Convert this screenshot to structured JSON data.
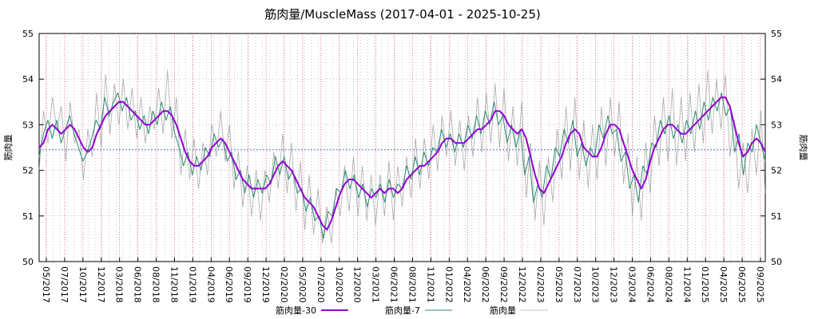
{
  "chart_data": {
    "type": "line",
    "title": "筋肉量/MuscleMass (2017-04-01 - 2025-10-25)",
    "ylabel_left": "筋肉量",
    "ylabel_right": "筋肉量",
    "ylim": [
      50,
      55
    ],
    "yticks": [
      50,
      51,
      52,
      53,
      54,
      55
    ],
    "xlim": [
      "2017-04-01",
      "2025-10-25"
    ],
    "xtick_labels": [
      "05/2017",
      "07/2017",
      "10/2017",
      "12/2017",
      "03/2018",
      "06/2018",
      "08/2018",
      "11/2018",
      "01/2019",
      "04/2019",
      "06/2019",
      "09/2019",
      "12/2019",
      "02/2020",
      "05/2020",
      "07/2020",
      "10/2020",
      "12/2020",
      "03/2021",
      "06/2021",
      "08/2021",
      "11/2021",
      "01/2022",
      "04/2022",
      "06/2022",
      "09/2022",
      "12/2022",
      "02/2023",
      "05/2023",
      "07/2023",
      "10/2023",
      "12/2023",
      "03/2024",
      "06/2024",
      "08/2024",
      "11/2024",
      "01/2025",
      "04/2025",
      "06/2025",
      "09/2025"
    ],
    "reference_line": 52.45,
    "grid": true,
    "legend": {
      "position": "bottom"
    },
    "series": [
      {
        "name": "筋肉量-30",
        "color": "#9400d3",
        "values": [
          52.5,
          52.6,
          52.9,
          53.0,
          52.9,
          52.8,
          52.9,
          53.0,
          52.9,
          52.7,
          52.5,
          52.4,
          52.5,
          52.8,
          53.0,
          53.2,
          53.3,
          53.4,
          53.5,
          53.5,
          53.4,
          53.3,
          53.2,
          53.1,
          53.0,
          53.0,
          53.1,
          53.2,
          53.3,
          53.3,
          53.2,
          53.0,
          52.7,
          52.4,
          52.2,
          52.1,
          52.1,
          52.2,
          52.3,
          52.5,
          52.6,
          52.7,
          52.6,
          52.4,
          52.2,
          52.0,
          51.8,
          51.7,
          51.6,
          51.6,
          51.6,
          51.6,
          51.7,
          51.9,
          52.1,
          52.2,
          52.1,
          52.0,
          51.8,
          51.6,
          51.4,
          51.3,
          51.2,
          51.0,
          50.8,
          50.7,
          50.9,
          51.2,
          51.5,
          51.7,
          51.8,
          51.8,
          51.7,
          51.6,
          51.5,
          51.4,
          51.5,
          51.6,
          51.5,
          51.6,
          51.6,
          51.5,
          51.6,
          51.8,
          51.9,
          52.0,
          52.1,
          52.1,
          52.2,
          52.3,
          52.4,
          52.6,
          52.7,
          52.7,
          52.6,
          52.6,
          52.6,
          52.7,
          52.8,
          52.9,
          52.9,
          53.0,
          53.1,
          53.3,
          53.3,
          53.2,
          53.0,
          52.9,
          52.8,
          52.9,
          52.7,
          52.3,
          51.9,
          51.6,
          51.5,
          51.7,
          51.9,
          52.1,
          52.3,
          52.6,
          52.8,
          52.9,
          52.8,
          52.5,
          52.4,
          52.3,
          52.3,
          52.5,
          52.8,
          53.0,
          53.0,
          52.9,
          52.6,
          52.3,
          52.0,
          51.8,
          51.6,
          51.8,
          52.2,
          52.5,
          52.7,
          52.9,
          53.0,
          53.0,
          52.9,
          52.8,
          52.8,
          52.9,
          53.0,
          53.1,
          53.2,
          53.3,
          53.4,
          53.5,
          53.6,
          53.6,
          53.4,
          53.0,
          52.6,
          52.3,
          52.4,
          52.6,
          52.7,
          52.6,
          52.4
        ]
      },
      {
        "name": "筋肉量-7",
        "color": "#2e8b73",
        "values": [
          52.3,
          52.8,
          53.1,
          52.7,
          53.1,
          52.6,
          52.9,
          53.2,
          52.8,
          52.5,
          52.2,
          52.4,
          52.7,
          53.1,
          52.9,
          53.6,
          53.2,
          53.5,
          53.7,
          53.3,
          53.6,
          53.1,
          53.3,
          52.9,
          53.2,
          52.8,
          53.3,
          53.0,
          53.5,
          53.1,
          53.4,
          52.8,
          52.5,
          52.1,
          52.4,
          51.9,
          52.3,
          52.0,
          52.5,
          52.3,
          52.8,
          52.5,
          52.7,
          52.2,
          52.4,
          51.8,
          52.0,
          51.5,
          51.9,
          51.4,
          51.8,
          51.5,
          51.9,
          51.7,
          52.3,
          51.9,
          52.3,
          51.8,
          52.0,
          51.5,
          51.6,
          51.1,
          51.4,
          50.9,
          51.0,
          50.5,
          51.1,
          51.0,
          51.6,
          51.5,
          52.0,
          51.6,
          51.9,
          51.4,
          51.7,
          51.2,
          51.6,
          51.4,
          51.7,
          51.3,
          51.8,
          51.4,
          51.7,
          51.6,
          52.1,
          51.8,
          52.3,
          51.9,
          52.4,
          52.1,
          52.5,
          52.4,
          52.9,
          52.5,
          52.8,
          52.4,
          52.8,
          52.5,
          53.0,
          52.7,
          53.2,
          52.8,
          53.3,
          53.0,
          53.5,
          53.0,
          53.2,
          52.6,
          53.0,
          52.5,
          52.9,
          51.9,
          52.3,
          51.3,
          51.7,
          51.4,
          52.1,
          51.8,
          52.5,
          52.3,
          52.9,
          52.6,
          53.1,
          52.3,
          52.6,
          52.1,
          52.5,
          52.3,
          53.0,
          52.7,
          53.2,
          52.8,
          52.9,
          52.2,
          52.4,
          51.6,
          51.9,
          51.3,
          52.1,
          51.9,
          52.6,
          52.5,
          53.1,
          52.8,
          53.2,
          52.7,
          53.0,
          52.6,
          53.1,
          52.8,
          53.3,
          52.9,
          53.5,
          53.1,
          53.6,
          53.3,
          53.7,
          53.2,
          53.4,
          52.4,
          52.8,
          51.9,
          52.6,
          52.4,
          53.0,
          52.6,
          52.2
        ]
      },
      {
        "name": "筋肉量",
        "color": "#888888",
        "values": [
          52.0,
          53.3,
          52.6,
          53.6,
          52.9,
          53.4,
          52.2,
          53.5,
          52.6,
          52.9,
          51.8,
          52.9,
          52.3,
          53.7,
          52.5,
          54.1,
          52.8,
          53.9,
          53.0,
          54.0,
          52.9,
          53.8,
          52.7,
          53.6,
          52.6,
          53.4,
          52.9,
          53.8,
          52.8,
          54.2,
          52.7,
          53.6,
          51.9,
          52.9,
          51.8,
          52.7,
          51.6,
          52.6,
          51.9,
          53.0,
          52.3,
          53.3,
          52.2,
          53.0,
          51.6,
          52.4,
          51.2,
          52.1,
          51.0,
          52.0,
          50.9,
          52.0,
          51.3,
          52.4,
          51.6,
          52.8,
          51.5,
          52.6,
          51.1,
          52.2,
          50.7,
          51.9,
          50.6,
          51.6,
          50.4,
          51.2,
          50.4,
          51.6,
          51.0,
          52.1,
          51.1,
          52.3,
          51.0,
          52.1,
          50.9,
          51.9,
          50.8,
          51.9,
          51.0,
          52.2,
          50.9,
          52.1,
          51.2,
          52.3,
          51.4,
          52.7,
          51.6,
          52.7,
          51.8,
          53.0,
          52.0,
          53.2,
          52.3,
          53.3,
          52.1,
          53.1,
          52.0,
          53.2,
          52.3,
          53.6,
          52.4,
          53.7,
          52.6,
          53.9,
          52.5,
          53.8,
          52.2,
          53.4,
          52.1,
          53.5,
          51.4,
          52.6,
          50.9,
          52.2,
          50.8,
          52.3,
          51.3,
          52.9,
          51.8,
          53.4,
          52.0,
          53.6,
          51.8,
          53.1,
          51.6,
          53.0,
          51.8,
          53.4,
          52.1,
          53.6,
          52.3,
          53.5,
          51.7,
          52.8,
          51.0,
          52.3,
          50.9,
          52.6,
          51.5,
          53.2,
          52.1,
          53.6,
          52.2,
          53.8,
          52.1,
          53.6,
          52.2,
          53.7,
          52.4,
          53.9,
          52.6,
          54.2,
          52.8,
          54.0,
          52.9,
          54.1,
          52.3,
          53.1,
          51.6,
          52.6,
          51.5,
          52.9,
          51.9,
          53.3,
          51.5
        ]
      }
    ]
  }
}
